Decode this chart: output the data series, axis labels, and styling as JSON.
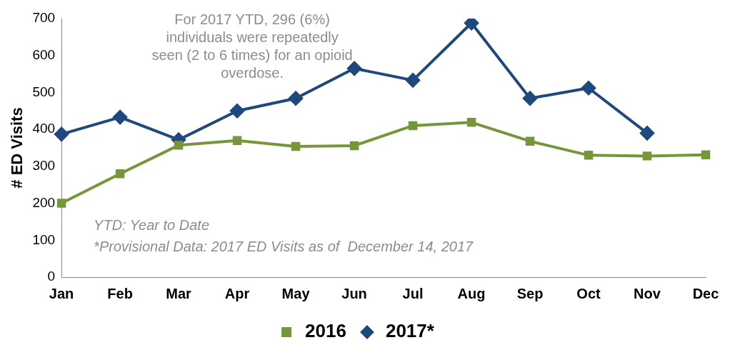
{
  "chart_data": {
    "type": "line",
    "ylabel": "# ED Visits",
    "categories": [
      "Jan",
      "Feb",
      "Mar",
      "Apr",
      "May",
      "Jun",
      "Jul",
      "Aug",
      "Sep",
      "Oct",
      "Nov",
      "Dec"
    ],
    "series": [
      {
        "name": "2016",
        "color": "#77963a",
        "marker": "square",
        "values": [
          200,
          280,
          357,
          370,
          354,
          356,
          410,
          419,
          368,
          330,
          328,
          331
        ]
      },
      {
        "name": "2017*",
        "color": "#1f497d",
        "marker": "diamond",
        "values": [
          387,
          433,
          372,
          450,
          484,
          565,
          533,
          688,
          484,
          512,
          390,
          null
        ]
      }
    ],
    "ylim": [
      0,
      700
    ],
    "yticks": [
      0,
      100,
      200,
      300,
      400,
      500,
      600,
      700
    ],
    "grid": false,
    "legend": "bottom",
    "annotations": [
      "For 2017 YTD, 296 (6%) individuals were repeatedly seen (2 to 6 times) for an opioid overdose.",
      "YTD: Year to Date",
      "*Provisional Data: 2017 ED Visits as of  December 14, 2017"
    ]
  }
}
